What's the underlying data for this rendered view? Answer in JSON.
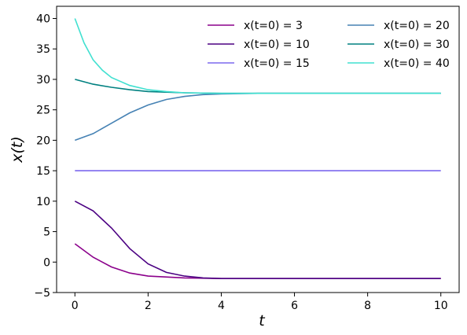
{
  "chart_data": {
    "type": "line",
    "xlabel": "t",
    "ylabel": "x(t)",
    "xlim": [
      -0.5,
      10.5
    ],
    "ylim": [
      -5,
      42
    ],
    "xticks": [
      0,
      2,
      4,
      6,
      8,
      10
    ],
    "yticks": [
      -5,
      0,
      5,
      10,
      15,
      20,
      25,
      30,
      35,
      40
    ],
    "xtick_labels": [
      "0",
      "2",
      "4",
      "6",
      "8",
      "10"
    ],
    "ytick_labels": [
      "−5",
      "0",
      "5",
      "10",
      "15",
      "20",
      "25",
      "30",
      "35",
      "40"
    ],
    "grid": false,
    "legend_position": "top-right",
    "legend_columns": 2,
    "series": [
      {
        "name": "x(t=0) = 3",
        "color": "#8b008b",
        "x": [
          0,
          0.5,
          1,
          1.5,
          2,
          3,
          4,
          5,
          6,
          7,
          8,
          9,
          10
        ],
        "y": [
          3,
          0.8,
          -0.8,
          -1.8,
          -2.3,
          -2.6,
          -2.7,
          -2.7,
          -2.7,
          -2.7,
          -2.7,
          -2.7,
          -2.7
        ]
      },
      {
        "name": "x(t=0) = 10",
        "color": "#4b0082",
        "x": [
          0,
          0.5,
          1,
          1.5,
          2,
          2.5,
          3,
          3.5,
          4,
          5,
          6,
          7,
          8,
          9,
          10
        ],
        "y": [
          10,
          8.4,
          5.6,
          2.2,
          -0.3,
          -1.7,
          -2.3,
          -2.6,
          -2.7,
          -2.7,
          -2.7,
          -2.7,
          -2.7,
          -2.7,
          -2.7
        ]
      },
      {
        "name": "x(t=0) = 15",
        "color": "#7b68ee",
        "x": [
          0,
          10
        ],
        "y": [
          15,
          15
        ]
      },
      {
        "name": "x(t=0) = 20",
        "color": "#4682b4",
        "x": [
          0,
          0.5,
          1,
          1.5,
          2,
          2.5,
          3,
          3.5,
          4,
          5,
          6,
          7,
          8,
          9,
          10
        ],
        "y": [
          20,
          21.1,
          22.8,
          24.5,
          25.8,
          26.7,
          27.2,
          27.5,
          27.6,
          27.7,
          27.7,
          27.7,
          27.7,
          27.7,
          27.7
        ]
      },
      {
        "name": "x(t=0) = 30",
        "color": "#008080",
        "x": [
          0,
          0.5,
          1,
          1.5,
          2,
          2.5,
          3,
          4,
          5,
          6,
          7,
          8,
          9,
          10
        ],
        "y": [
          30,
          29.2,
          28.7,
          28.3,
          28.0,
          27.9,
          27.8,
          27.7,
          27.7,
          27.7,
          27.7,
          27.7,
          27.7,
          27.7
        ]
      },
      {
        "name": "x(t=0) = 40",
        "color": "#40e0d0",
        "x": [
          0,
          0.25,
          0.5,
          0.75,
          1,
          1.5,
          2,
          2.5,
          3,
          4,
          5,
          6,
          7,
          8,
          9,
          10
        ],
        "y": [
          40,
          36.0,
          33.2,
          31.5,
          30.3,
          29.0,
          28.3,
          28.0,
          27.8,
          27.7,
          27.7,
          27.7,
          27.7,
          27.7,
          27.7,
          27.7
        ]
      }
    ]
  }
}
